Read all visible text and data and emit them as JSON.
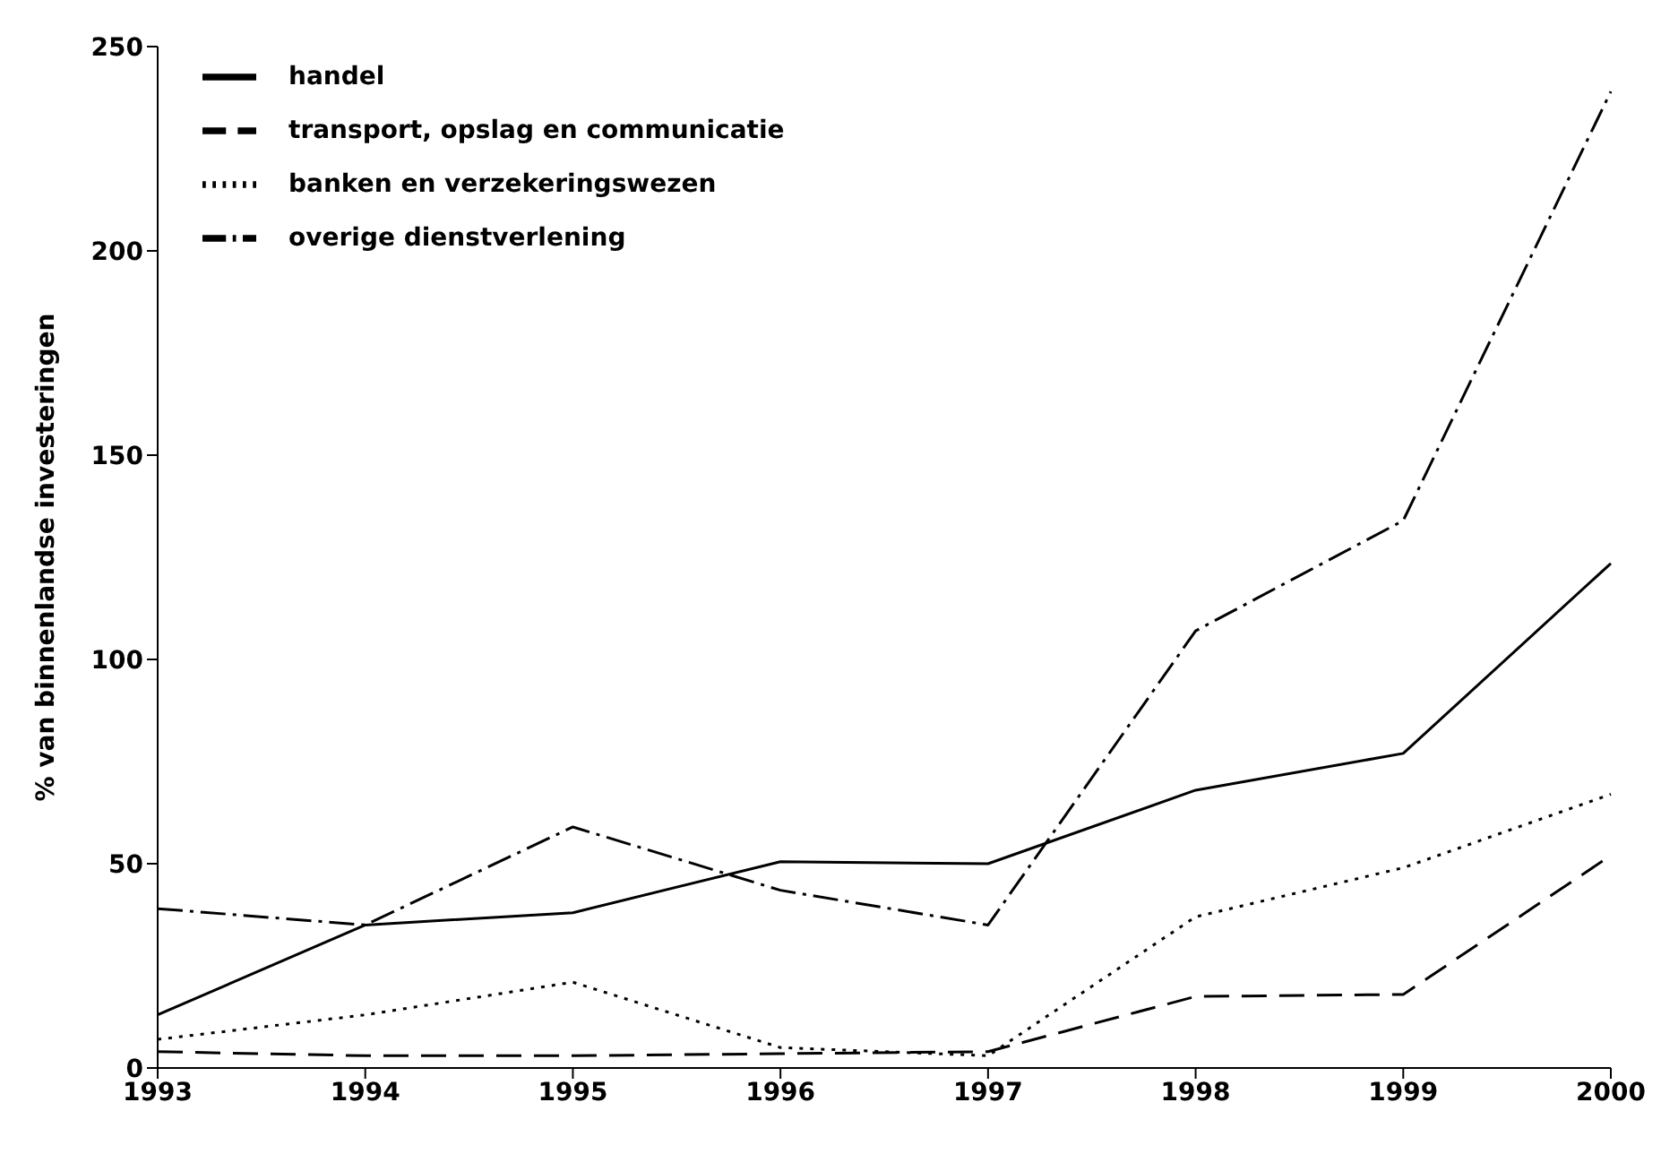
{
  "chart_data": {
    "type": "line",
    "ylabel": "% van binnenlandse investeringen",
    "categories": [
      "1993",
      "1994",
      "1995",
      "1996",
      "1997",
      "1998",
      "1999",
      "2000"
    ],
    "ylim": [
      0,
      250
    ],
    "yticks": [
      0,
      50,
      100,
      150,
      200,
      250
    ],
    "grid": false,
    "legend": "top left",
    "marker": "none",
    "series": [
      {
        "name": "handel",
        "color": "#000000",
        "line_style": "solid",
        "values": [
          13,
          35,
          38,
          50.5,
          50,
          68,
          77,
          123.5
        ]
      },
      {
        "name": "transport, opslag en communicatie",
        "color": "#000000",
        "line_style": "dashed",
        "values": [
          4,
          3,
          3,
          3.5,
          4,
          17.5,
          18,
          52
        ]
      },
      {
        "name": "banken en verzekeringswezen",
        "color": "#000000",
        "line_style": "dotted",
        "values": [
          7,
          13,
          21,
          5,
          3,
          37,
          49,
          67
        ]
      },
      {
        "name": "overige dienstverlening",
        "color": "#000000",
        "line_style": "dashdot",
        "values": [
          39,
          35,
          59,
          43.5,
          35,
          107,
          134,
          239
        ]
      }
    ]
  }
}
